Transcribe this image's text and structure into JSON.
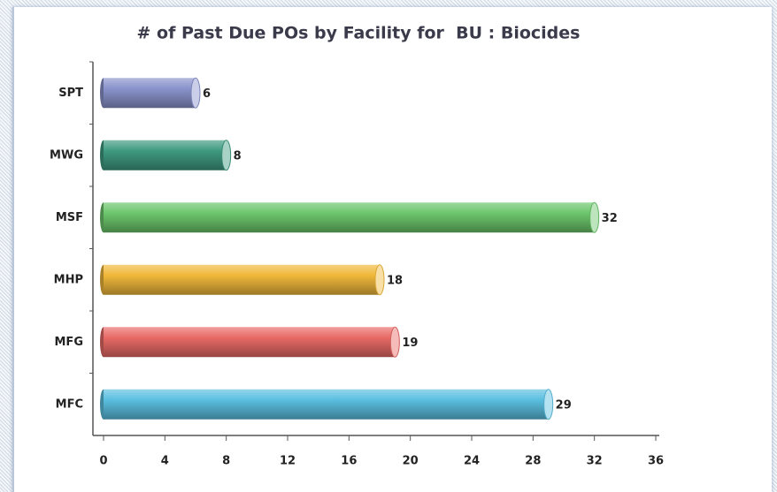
{
  "chart_data": {
    "type": "bar",
    "orientation": "horizontal",
    "title": "# of Past Due POs by Facility for  BU : Biocides",
    "categories": [
      "SPT",
      "MWG",
      "MSF",
      "MHP",
      "MFG",
      "MFC"
    ],
    "values": [
      6,
      8,
      32,
      18,
      19,
      29
    ],
    "colors": [
      "#8a93cc",
      "#3f9a80",
      "#6cc66c",
      "#f0b83a",
      "#e86a66",
      "#5bbfe0"
    ],
    "xlim": [
      0,
      36
    ],
    "xticks": [
      0,
      4,
      8,
      12,
      16,
      20,
      24,
      28,
      32,
      36
    ],
    "grid": false
  }
}
